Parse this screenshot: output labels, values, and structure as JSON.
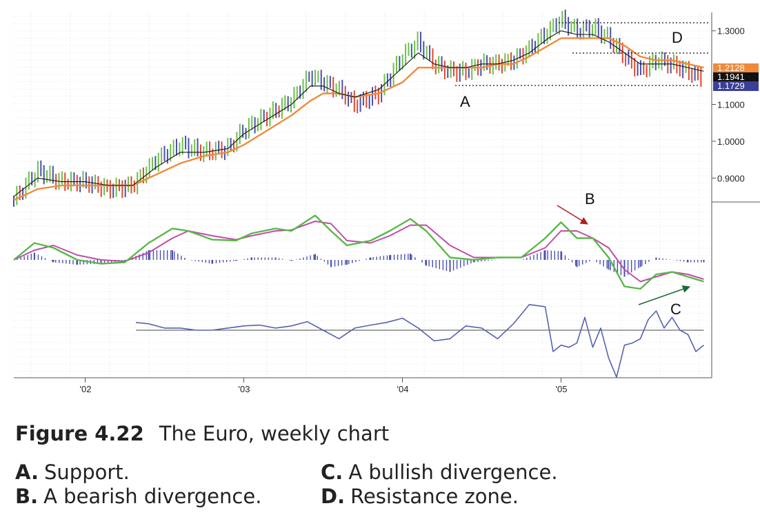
{
  "figure": {
    "number": "Figure 4.22",
    "title": "The Euro, weekly chart"
  },
  "legend": [
    {
      "key": "A.",
      "text": "Support."
    },
    {
      "key": "B.",
      "text": "A bearish divergence."
    },
    {
      "key": "C.",
      "text": "A bullish divergence."
    },
    {
      "key": "D.",
      "text": "Resistance zone."
    }
  ],
  "colors": {
    "up_bar": "#6cbf4a",
    "down_bar": "#e0472e",
    "neutral_bar": "#4a4fae",
    "ema_fast": "#111111",
    "ema_slow": "#ef8a3a",
    "macd_line": "#58b848",
    "signal_line": "#c04aa8",
    "histogram": "#4a4fae",
    "force_index": "#5560b0",
    "arrow_B": "#b02020",
    "arrow_C": "#1a6a3a",
    "tag_orange": "#ef8a3a",
    "tag_black": "#111111",
    "tag_blue": "#3a3f9a"
  },
  "chart_data": {
    "type": "line",
    "x_tick_labels": [
      "'02",
      "'03",
      "'04",
      "'05"
    ],
    "price_axis": {
      "ticks": [
        "1.3000",
        "1.1000",
        "1.0000",
        "0.9000"
      ],
      "tick_values": [
        1.3,
        1.1,
        1.0,
        0.9
      ],
      "ylim": [
        0.835,
        1.35
      ],
      "last_price_tags": [
        "1.2128",
        "1.1941",
        "1.1729"
      ]
    },
    "price_bars": {
      "x": [
        2001.55,
        2001.7,
        2001.85,
        2002.0,
        2002.15,
        2002.3,
        2002.45,
        2002.6,
        2002.75,
        2002.9,
        2003.0,
        2003.15,
        2003.3,
        2003.42,
        2003.5,
        2003.6,
        2003.7,
        2003.85,
        2004.0,
        2004.1,
        2004.2,
        2004.3,
        2004.4,
        2004.5,
        2004.6,
        2004.7,
        2004.8,
        2004.92,
        2005.0,
        2005.1,
        2005.2,
        2005.3,
        2005.4,
        2005.5,
        2005.6,
        2005.7,
        2005.8,
        2005.9
      ],
      "close": [
        0.84,
        0.92,
        0.89,
        0.89,
        0.87,
        0.88,
        0.95,
        0.99,
        0.97,
        0.98,
        1.03,
        1.07,
        1.11,
        1.18,
        1.16,
        1.14,
        1.1,
        1.13,
        1.23,
        1.27,
        1.21,
        1.19,
        1.19,
        1.21,
        1.21,
        1.22,
        1.25,
        1.3,
        1.33,
        1.3,
        1.31,
        1.28,
        1.23,
        1.19,
        1.22,
        1.21,
        1.19,
        1.17
      ]
    },
    "series": [
      {
        "x": [
          2001.55,
          2001.7,
          2001.85,
          2002.0,
          2002.15,
          2002.3,
          2002.45,
          2002.6,
          2002.75,
          2002.9,
          2003.0,
          2003.15,
          2003.3,
          2003.42,
          2003.5,
          2003.6,
          2003.7,
          2003.85,
          2004.0,
          2004.1,
          2004.2,
          2004.3,
          2004.4,
          2004.5,
          2004.6,
          2004.7,
          2004.8,
          2004.92,
          2005.0,
          2005.1,
          2005.2,
          2005.3,
          2005.4,
          2005.5,
          2005.6,
          2005.7,
          2005.8,
          2005.9
        ],
        "values": [
          0.85,
          0.9,
          0.89,
          0.89,
          0.88,
          0.88,
          0.93,
          0.97,
          0.97,
          0.98,
          1.02,
          1.06,
          1.1,
          1.15,
          1.15,
          1.13,
          1.12,
          1.14,
          1.2,
          1.24,
          1.21,
          1.2,
          1.2,
          1.21,
          1.21,
          1.22,
          1.24,
          1.28,
          1.3,
          1.29,
          1.29,
          1.27,
          1.24,
          1.21,
          1.21,
          1.21,
          1.2,
          1.19
        ]
      },
      {
        "x": [
          2001.55,
          2001.7,
          2001.85,
          2002.0,
          2002.15,
          2002.3,
          2002.45,
          2002.6,
          2002.75,
          2002.9,
          2003.0,
          2003.15,
          2003.3,
          2003.42,
          2003.5,
          2003.6,
          2003.7,
          2003.85,
          2004.0,
          2004.1,
          2004.2,
          2004.3,
          2004.4,
          2004.5,
          2004.6,
          2004.7,
          2004.8,
          2004.92,
          2005.0,
          2005.1,
          2005.2,
          2005.3,
          2005.4,
          2005.5,
          2005.6,
          2005.7,
          2005.8,
          2005.9
        ],
        "values": [
          0.84,
          0.87,
          0.88,
          0.88,
          0.88,
          0.88,
          0.91,
          0.94,
          0.96,
          0.97,
          0.99,
          1.03,
          1.07,
          1.11,
          1.13,
          1.13,
          1.12,
          1.13,
          1.16,
          1.2,
          1.2,
          1.2,
          1.2,
          1.2,
          1.21,
          1.21,
          1.23,
          1.26,
          1.28,
          1.28,
          1.28,
          1.28,
          1.26,
          1.23,
          1.22,
          1.22,
          1.21,
          1.2
        ]
      }
    ],
    "macd": {
      "x": [
        2001.55,
        2001.68,
        2001.8,
        2001.95,
        2002.1,
        2002.25,
        2002.4,
        2002.55,
        2002.65,
        2002.8,
        2002.95,
        2003.05,
        2003.2,
        2003.3,
        2003.45,
        2003.55,
        2003.65,
        2003.8,
        2003.92,
        2004.05,
        2004.15,
        2004.3,
        2004.45,
        2004.6,
        2004.75,
        2004.9,
        2005.0,
        2005.1,
        2005.2,
        2005.3,
        2005.4,
        2005.5,
        2005.6,
        2005.7,
        2005.8,
        2005.9
      ],
      "macd_line": [
        0.0,
        0.35,
        0.25,
        0.0,
        -0.08,
        -0.05,
        0.35,
        0.65,
        0.6,
        0.42,
        0.4,
        0.55,
        0.65,
        0.6,
        0.92,
        0.6,
        0.3,
        0.4,
        0.6,
        0.85,
        0.6,
        0.05,
        0.0,
        0.05,
        0.05,
        0.45,
        0.78,
        0.45,
        0.45,
        0.05,
        -0.55,
        -0.6,
        -0.3,
        -0.25,
        -0.35,
        -0.45
      ],
      "signal_line": [
        0.0,
        0.2,
        0.3,
        0.1,
        0.0,
        -0.03,
        0.15,
        0.45,
        0.6,
        0.5,
        0.42,
        0.5,
        0.6,
        0.62,
        0.8,
        0.75,
        0.4,
        0.35,
        0.5,
        0.72,
        0.72,
        0.3,
        0.05,
        0.05,
        0.05,
        0.25,
        0.6,
        0.6,
        0.45,
        0.25,
        -0.2,
        -0.45,
        -0.35,
        -0.25,
        -0.3,
        -0.4
      ],
      "histogram": [
        0.0,
        0.15,
        -0.05,
        -0.1,
        -0.08,
        -0.02,
        0.2,
        0.2,
        0.0,
        -0.08,
        -0.02,
        0.05,
        0.05,
        -0.02,
        0.12,
        -0.15,
        -0.1,
        0.05,
        0.1,
        0.13,
        -0.12,
        -0.25,
        -0.05,
        0.0,
        0.0,
        0.2,
        0.18,
        -0.15,
        0.0,
        -0.2,
        -0.35,
        -0.15,
        0.05,
        0.0,
        -0.05,
        -0.05
      ]
    },
    "force_index": {
      "x": [
        2002.32,
        2002.4,
        2002.5,
        2002.6,
        2002.7,
        2002.8,
        2002.9,
        2003.0,
        2003.1,
        2003.2,
        2003.3,
        2003.4,
        2003.5,
        2003.6,
        2003.7,
        2003.8,
        2003.9,
        2004.0,
        2004.1,
        2004.2,
        2004.3,
        2004.4,
        2004.5,
        2004.6,
        2004.7,
        2004.8,
        2004.9,
        2004.95,
        2005.0,
        2005.05,
        2005.1,
        2005.15,
        2005.2,
        2005.25,
        2005.3,
        2005.35,
        2005.4,
        2005.45,
        2005.5,
        2005.55,
        2005.6,
        2005.65,
        2005.7,
        2005.75,
        2005.8,
        2005.85,
        2005.9
      ],
      "values": [
        0.18,
        0.15,
        0.05,
        0.05,
        0.0,
        0.0,
        0.05,
        0.1,
        0.12,
        0.05,
        0.1,
        0.2,
        0.0,
        -0.2,
        0.05,
        0.12,
        0.18,
        0.28,
        0.05,
        -0.25,
        -0.2,
        0.1,
        0.05,
        -0.2,
        0.15,
        0.6,
        0.55,
        -0.5,
        -0.35,
        -0.4,
        -0.3,
        0.3,
        -0.4,
        0.05,
        -0.65,
        -1.1,
        -0.35,
        -0.3,
        -0.2,
        0.25,
        0.45,
        0.05,
        0.3,
        0.0,
        -0.1,
        -0.5,
        -0.35
      ],
      "baseline": 0.0
    },
    "annotations": [
      {
        "label": "A",
        "meaning": "support"
      },
      {
        "label": "B",
        "meaning": "bearish divergence"
      },
      {
        "label": "C",
        "meaning": "bullish divergence"
      },
      {
        "label": "D",
        "meaning": "resistance zone"
      }
    ],
    "grid": true
  }
}
